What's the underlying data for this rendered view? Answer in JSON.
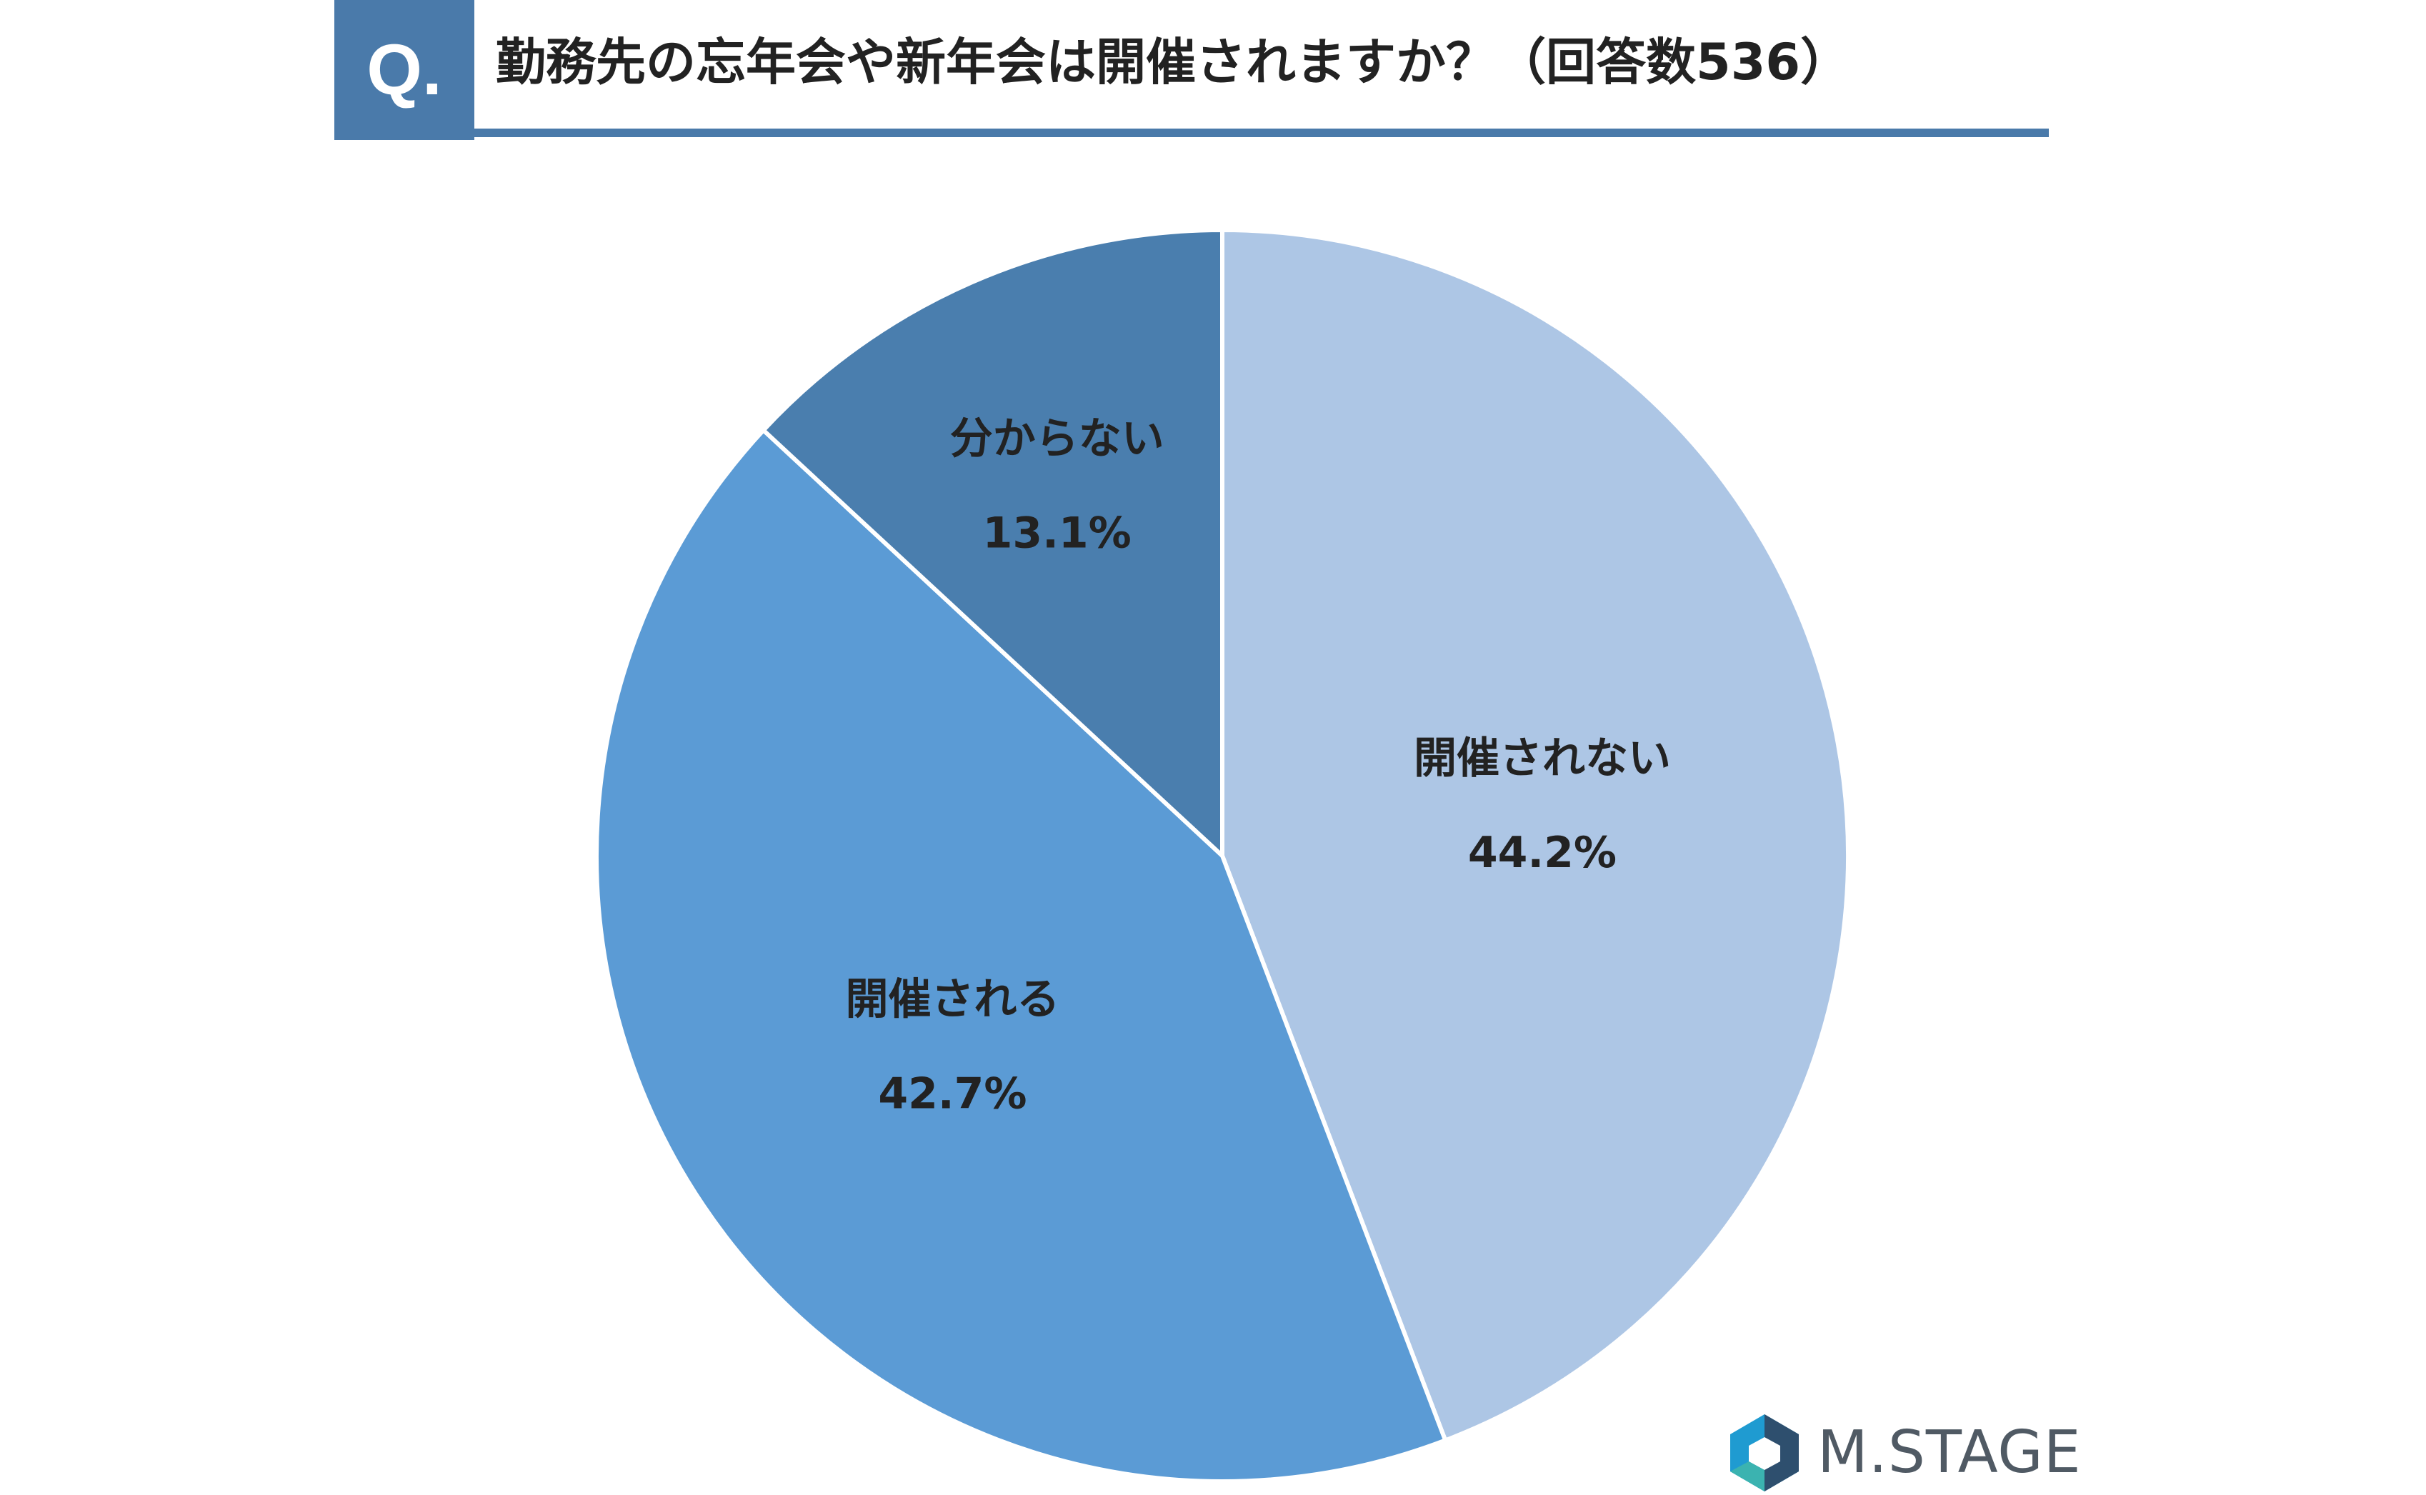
{
  "header": {
    "badge": "Q.",
    "question": "勤務先の忘年会や新年会は開催されますか？（回答数536）"
  },
  "chart_data": {
    "type": "pie",
    "title": "勤務先の忘年会や新年会は開催されますか？（回答数536）",
    "total_responses": 536,
    "start_angle": "12 o'clock, clockwise",
    "slices": [
      {
        "label": "開催されない",
        "value": 44.2,
        "value_label": "44.2%",
        "color": "#adc6e5"
      },
      {
        "label": "開催される",
        "value": 42.7,
        "value_label": "42.7%",
        "color": "#5b9bd5"
      },
      {
        "label": "分からない",
        "value": 13.1,
        "value_label": "13.1%",
        "color": "#4a7eae"
      }
    ]
  },
  "branding": {
    "logo_text": "M.STAGE",
    "logo_colors": [
      "#1f9bd1",
      "#2e4f6e",
      "#3bb3b0"
    ]
  }
}
